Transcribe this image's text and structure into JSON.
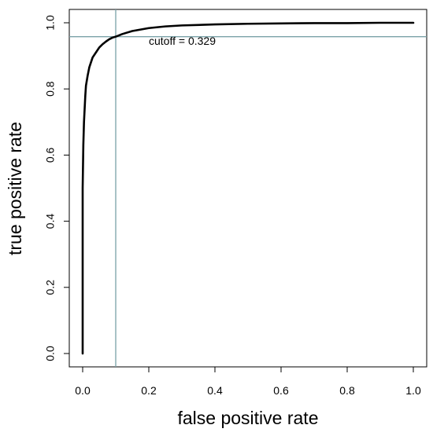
{
  "chart_data": {
    "type": "line",
    "title": "",
    "xlabel": "false positive rate",
    "ylabel": "true positive rate",
    "xlim": [
      -0.04,
      1.04
    ],
    "ylim": [
      -0.04,
      1.04
    ],
    "x_ticks": [
      0.0,
      0.2,
      0.4,
      0.6,
      0.8,
      1.0
    ],
    "x_tick_labels": [
      "0.0",
      "0.2",
      "0.4",
      "0.6",
      "0.8",
      "1.0"
    ],
    "y_ticks": [
      0.0,
      0.2,
      0.4,
      0.6,
      0.8,
      1.0
    ],
    "y_tick_labels": [
      "0.0",
      "0.2",
      "0.4",
      "0.6",
      "0.8",
      "1.0"
    ],
    "grid": false,
    "series": [
      {
        "color": "#000000",
        "x": [
          0.0,
          0.0,
          0.002,
          0.004,
          0.006,
          0.008,
          0.01,
          0.015,
          0.02,
          0.03,
          0.04,
          0.05,
          0.06,
          0.07,
          0.08,
          0.09,
          0.1,
          0.12,
          0.15,
          0.2,
          0.25,
          0.3,
          0.4,
          0.5,
          0.6,
          0.7,
          0.8,
          0.9,
          1.0
        ],
        "y": [
          0.0,
          0.5,
          0.63,
          0.7,
          0.74,
          0.78,
          0.81,
          0.84,
          0.865,
          0.895,
          0.91,
          0.925,
          0.935,
          0.943,
          0.95,
          0.955,
          0.958,
          0.966,
          0.975,
          0.984,
          0.989,
          0.992,
          0.995,
          0.997,
          0.998,
          0.999,
          0.999,
          1.0,
          1.0
        ]
      }
    ],
    "reference_lines": {
      "color": "#7aa2a8",
      "vertical_x": 0.1,
      "horizontal_y": 0.958
    },
    "annotation": {
      "text": "cutoff = 0.329",
      "x": 0.2,
      "y": 0.945
    }
  }
}
